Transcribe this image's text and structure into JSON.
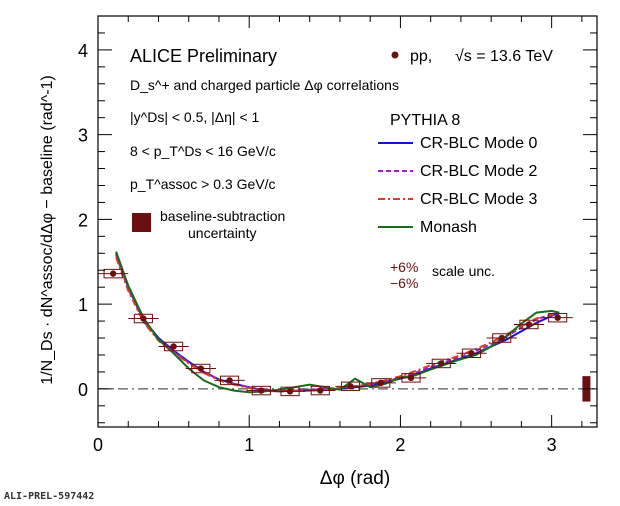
{
  "watermark": "ALI-PREL-597442",
  "chart_data": {
    "type": "scatter",
    "title": "ALICE Preliminary",
    "xlabel": "Δφ (rad)",
    "ylabel": "1/N_Ds · dN^assoc/dΔφ − baseline (rad^-1)",
    "xlim": [
      0,
      3.3
    ],
    "ylim": [
      -0.45,
      4.4
    ],
    "xticks": [
      0,
      1,
      2,
      3
    ],
    "yticks": [
      0,
      1,
      2,
      3,
      4
    ],
    "grid": false,
    "legend_position": "right",
    "annotations": {
      "subtitle": "D_s^+ and charged particle Δφ correlations",
      "cut_rapidity": "|y^Ds| < 0.5, |Δη| < 1",
      "cut_pt": "8 < p_T^Ds < 16 GeV/c",
      "cut_assoc": "p_T^assoc > 0.3 GeV/c",
      "baseline_label_1": "baseline-subtraction",
      "baseline_label_2": "uncertainty",
      "data_label": "pp,",
      "energy_label": "√s = 13.6 TeV",
      "model_title": "PYTHIA 8",
      "scale_plus": "+6%",
      "scale_minus": "−6%",
      "scale_text": "scale unc."
    },
    "data": {
      "name": "pp, √s = 13.6 TeV",
      "color": "#6b0f0f",
      "x": [
        0.1,
        0.3,
        0.5,
        0.68,
        0.87,
        1.08,
        1.27,
        1.47,
        1.67,
        1.87,
        2.07,
        2.27,
        2.47,
        2.67,
        2.85,
        3.04
      ],
      "y": [
        1.36,
        0.83,
        0.5,
        0.24,
        0.1,
        -0.02,
        -0.03,
        -0.02,
        0.03,
        0.07,
        0.13,
        0.3,
        0.42,
        0.6,
        0.76,
        0.84
      ],
      "xerr": 0.1,
      "sys_box_height": 0.1
    },
    "baseline_uncertainty": {
      "x": 3.23,
      "y_low": -0.15,
      "y_high": 0.15,
      "color": "#6b0f0f"
    },
    "series": [
      {
        "name": "CR-BLC Mode 0",
        "color": "#1414d8",
        "dash": "solid",
        "x": [
          0.12,
          0.2,
          0.3,
          0.4,
          0.5,
          0.6,
          0.7,
          0.8,
          0.9,
          1.0,
          1.1,
          1.2,
          1.3,
          1.4,
          1.5,
          1.6,
          1.7,
          1.8,
          1.9,
          2.0,
          2.1,
          2.2,
          2.3,
          2.4,
          2.5,
          2.6,
          2.7,
          2.8,
          2.9,
          3.0,
          3.05
        ],
        "y": [
          1.6,
          1.2,
          0.82,
          0.6,
          0.45,
          0.32,
          0.2,
          0.11,
          0.06,
          0.02,
          -0.02,
          -0.03,
          -0.02,
          -0.02,
          -0.01,
          0.0,
          0.02,
          0.04,
          0.08,
          0.12,
          0.17,
          0.24,
          0.3,
          0.36,
          0.42,
          0.5,
          0.58,
          0.68,
          0.78,
          0.86,
          0.9
        ]
      },
      {
        "name": "CR-BLC Mode 2",
        "color": "#a020c8",
        "dash": "dashed",
        "x": [
          0.12,
          0.2,
          0.3,
          0.4,
          0.5,
          0.6,
          0.7,
          0.8,
          0.9,
          1.0,
          1.1,
          1.2,
          1.3,
          1.4,
          1.5,
          1.6,
          1.7,
          1.8,
          1.9,
          2.0,
          2.1,
          2.2,
          2.3,
          2.4,
          2.5,
          2.6,
          2.7,
          2.8,
          2.9,
          3.0,
          3.05
        ],
        "y": [
          1.58,
          1.18,
          0.8,
          0.58,
          0.44,
          0.31,
          0.2,
          0.11,
          0.06,
          0.02,
          -0.01,
          -0.02,
          -0.02,
          -0.01,
          0.0,
          0.01,
          0.03,
          0.05,
          0.09,
          0.13,
          0.19,
          0.26,
          0.32,
          0.38,
          0.45,
          0.53,
          0.62,
          0.72,
          0.82,
          0.88,
          0.9
        ]
      },
      {
        "name": "CR-BLC Mode 3",
        "color": "#e03b1c",
        "dash": "dashdot",
        "x": [
          0.12,
          0.2,
          0.3,
          0.4,
          0.5,
          0.6,
          0.7,
          0.8,
          0.9,
          1.0,
          1.1,
          1.2,
          1.3,
          1.4,
          1.5,
          1.6,
          1.7,
          1.8,
          1.9,
          2.0,
          2.1,
          2.2,
          2.3,
          2.4,
          2.5,
          2.6,
          2.7,
          2.8,
          2.9,
          3.0,
          3.05
        ],
        "y": [
          1.55,
          1.16,
          0.79,
          0.57,
          0.43,
          0.3,
          0.19,
          0.1,
          0.05,
          0.01,
          -0.02,
          -0.03,
          -0.02,
          -0.02,
          -0.01,
          0.01,
          0.03,
          0.06,
          0.1,
          0.15,
          0.21,
          0.28,
          0.34,
          0.4,
          0.47,
          0.55,
          0.64,
          0.74,
          0.83,
          0.87,
          0.88
        ]
      },
      {
        "name": "Monash",
        "color": "#1a6b1a",
        "dash": "solid",
        "x": [
          0.12,
          0.2,
          0.3,
          0.4,
          0.5,
          0.6,
          0.7,
          0.8,
          0.9,
          1.0,
          1.1,
          1.2,
          1.3,
          1.4,
          1.5,
          1.6,
          1.7,
          1.8,
          1.9,
          2.0,
          2.1,
          2.2,
          2.3,
          2.4,
          2.5,
          2.6,
          2.7,
          2.8,
          2.9,
          3.0,
          3.05
        ],
        "y": [
          1.62,
          1.22,
          0.84,
          0.58,
          0.42,
          0.24,
          0.1,
          0.02,
          -0.02,
          -0.04,
          -0.03,
          -0.01,
          0.02,
          0.05,
          0.02,
          -0.01,
          0.12,
          0.02,
          0.06,
          0.13,
          0.16,
          0.23,
          0.29,
          0.35,
          0.4,
          0.5,
          0.62,
          0.77,
          0.9,
          0.92,
          0.9
        ]
      }
    ]
  }
}
